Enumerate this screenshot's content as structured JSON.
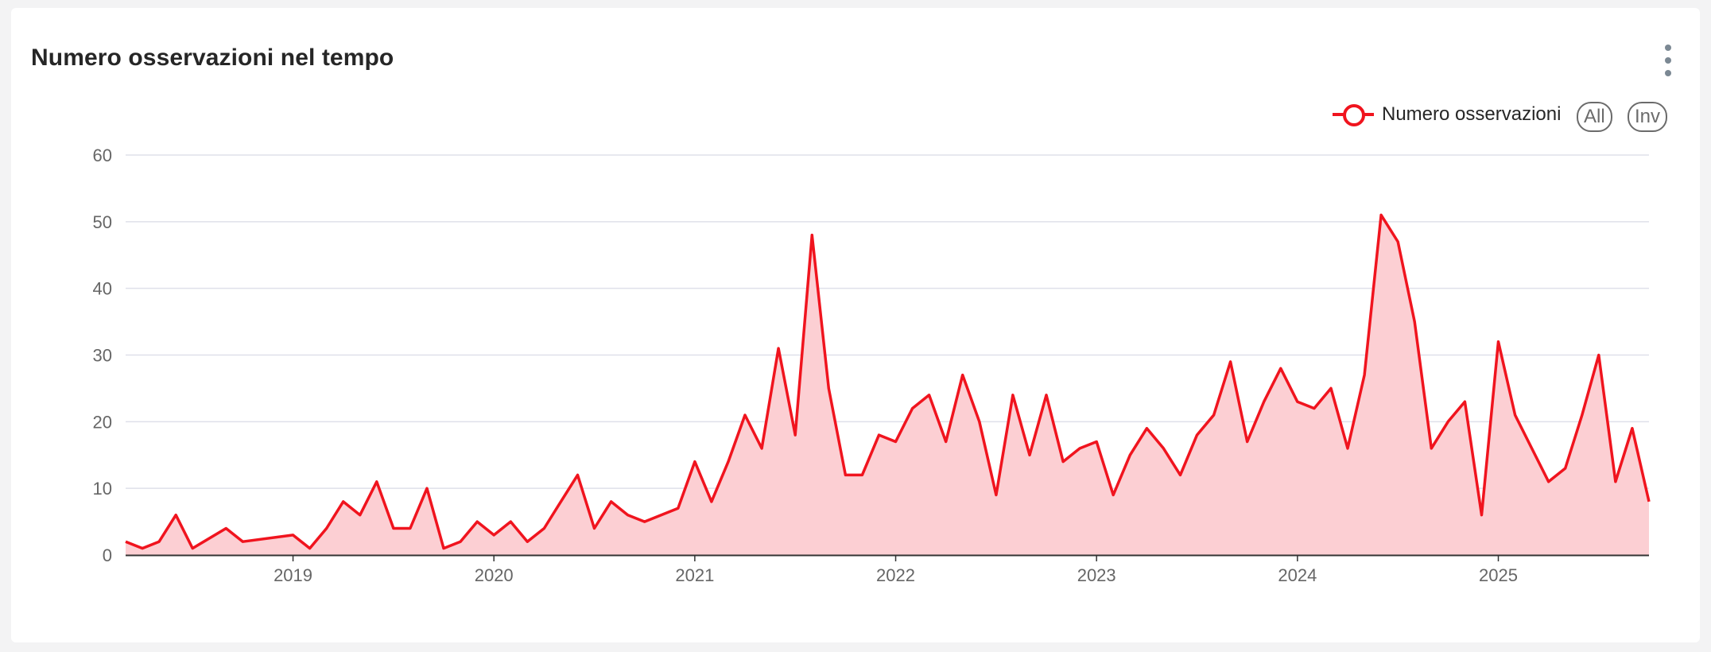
{
  "title": "Numero osservazioni nel tempo",
  "legend": {
    "label": "Numero osservazioni",
    "all_label": "All",
    "inv_label": "Inv"
  },
  "colors": {
    "line": "#f0141e",
    "area": "#fccfd3",
    "grid": "#dfe0ea",
    "axis": "#333333"
  },
  "menu_icon": "more-vertical-icon",
  "chart_data": {
    "type": "area",
    "xlabel": "",
    "ylabel": "",
    "ylim": [
      0,
      60
    ],
    "yticks": [
      0,
      10,
      20,
      30,
      40,
      50,
      60
    ],
    "xtick_labels": [
      "2019",
      "2020",
      "2021",
      "2022",
      "2023",
      "2024",
      "2025"
    ],
    "grid": true,
    "legend_position": "top-right",
    "series": [
      {
        "name": "Numero osservazioni",
        "points": [
          [
            "2018-03",
            2
          ],
          [
            "2018-04",
            1
          ],
          [
            "2018-05",
            2
          ],
          [
            "2018-06",
            6
          ],
          [
            "2018-07",
            1
          ],
          [
            "2018-09",
            4
          ],
          [
            "2018-10",
            2
          ],
          [
            "2019-01",
            3
          ],
          [
            "2019-02",
            1
          ],
          [
            "2019-03",
            4
          ],
          [
            "2019-04",
            8
          ],
          [
            "2019-05",
            6
          ],
          [
            "2019-06",
            11
          ],
          [
            "2019-07",
            4
          ],
          [
            "2019-08",
            4
          ],
          [
            "2019-09",
            10
          ],
          [
            "2019-10",
            1
          ],
          [
            "2019-11",
            2
          ],
          [
            "2019-12",
            5
          ],
          [
            "2020-01",
            3
          ],
          [
            "2020-02",
            5
          ],
          [
            "2020-03",
            2
          ],
          [
            "2020-04",
            4
          ],
          [
            "2020-05",
            8
          ],
          [
            "2020-06",
            12
          ],
          [
            "2020-07",
            4
          ],
          [
            "2020-08",
            8
          ],
          [
            "2020-09",
            6
          ],
          [
            "2020-10",
            5
          ],
          [
            "2020-12",
            7
          ],
          [
            "2021-01",
            14
          ],
          [
            "2021-02",
            8
          ],
          [
            "2021-03",
            14
          ],
          [
            "2021-04",
            21
          ],
          [
            "2021-05",
            16
          ],
          [
            "2021-06",
            31
          ],
          [
            "2021-07",
            18
          ],
          [
            "2021-08",
            48
          ],
          [
            "2021-09",
            25
          ],
          [
            "2021-10",
            12
          ],
          [
            "2021-11",
            12
          ],
          [
            "2021-12",
            18
          ],
          [
            "2022-01",
            17
          ],
          [
            "2022-02",
            22
          ],
          [
            "2022-03",
            24
          ],
          [
            "2022-04",
            17
          ],
          [
            "2022-05",
            27
          ],
          [
            "2022-06",
            20
          ],
          [
            "2022-07",
            9
          ],
          [
            "2022-08",
            24
          ],
          [
            "2022-09",
            15
          ],
          [
            "2022-10",
            24
          ],
          [
            "2022-11",
            14
          ],
          [
            "2022-12",
            16
          ],
          [
            "2023-01",
            17
          ],
          [
            "2023-02",
            9
          ],
          [
            "2023-03",
            15
          ],
          [
            "2023-04",
            19
          ],
          [
            "2023-05",
            16
          ],
          [
            "2023-06",
            12
          ],
          [
            "2023-07",
            18
          ],
          [
            "2023-08",
            21
          ],
          [
            "2023-09",
            29
          ],
          [
            "2023-10",
            17
          ],
          [
            "2023-11",
            23
          ],
          [
            "2023-12",
            28
          ],
          [
            "2024-01",
            23
          ],
          [
            "2024-02",
            22
          ],
          [
            "2024-03",
            25
          ],
          [
            "2024-04",
            16
          ],
          [
            "2024-05",
            27
          ],
          [
            "2024-06",
            51
          ],
          [
            "2024-07",
            47
          ],
          [
            "2024-08",
            35
          ],
          [
            "2024-09",
            16
          ],
          [
            "2024-10",
            20
          ],
          [
            "2024-11",
            23
          ],
          [
            "2024-12",
            6
          ],
          [
            "2025-01",
            32
          ],
          [
            "2025-02",
            21
          ],
          [
            "2025-03",
            16
          ],
          [
            "2025-04",
            11
          ],
          [
            "2025-05",
            13
          ],
          [
            "2025-06",
            21
          ],
          [
            "2025-07",
            30
          ],
          [
            "2025-08",
            11
          ],
          [
            "2025-09",
            19
          ],
          [
            "2025-10",
            8
          ]
        ]
      }
    ]
  }
}
